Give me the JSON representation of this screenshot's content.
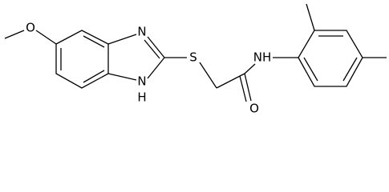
{
  "atoms": {
    "methoxy_o": "O",
    "n3": "N",
    "n1": "N",
    "n1_h": "H",
    "s": "S",
    "nh": "NH",
    "carbonyl_o": "O"
  }
}
